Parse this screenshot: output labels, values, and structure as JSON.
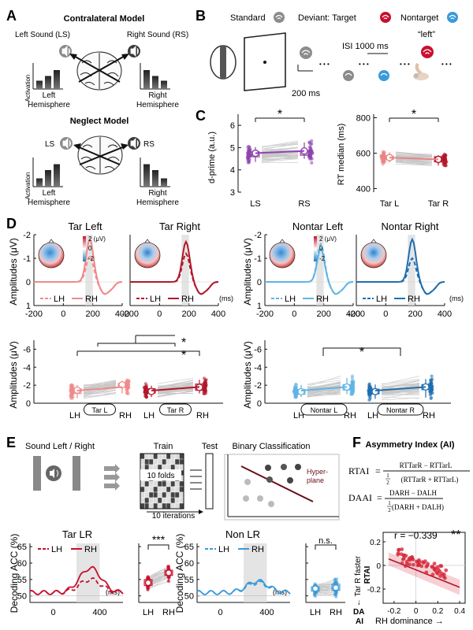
{
  "panels": {
    "A": {
      "letter": "A",
      "contra_title": "Contralateral Model",
      "left_sound": "Left Sound (LS)",
      "right_sound": "Right Sound (RS)",
      "activation": "Activation",
      "left_hemi": [
        "Left",
        "Hemisphere"
      ],
      "right_hemi": [
        "Right",
        "Hemisphere"
      ],
      "neglect_title": "Neglect Model",
      "ls": "LS",
      "rs": "RS",
      "bars_contra_left": [
        0.35,
        0.55,
        0.8
      ],
      "bars_contra_right": [
        0.8,
        0.55,
        0.35
      ],
      "bars_neglect_left": [
        0.35,
        0.7,
        0.95
      ],
      "bars_neglect_right": [
        0.95,
        0.7,
        0.35
      ]
    },
    "B": {
      "letter": "B",
      "standard": "Standard",
      "deviant": "Deviant: Target",
      "nontarget": "Nontarget",
      "left_quote": "“left”",
      "isi": "ISI 1000 ms",
      "dur": "200 ms",
      "dots": "• • •",
      "colors": {
        "standard": "#8c8c8c",
        "target": "#c8102e",
        "nontarget": "#3a9ad9"
      }
    },
    "C": {
      "letter": "C",
      "sig": "*",
      "dprime": {
        "ylabel": "d-prime (a.u.)",
        "yticks": [
          "3",
          "4",
          "5",
          "6"
        ],
        "ylim": [
          3,
          6.5
        ],
        "categories": [
          "LS",
          "RS"
        ],
        "medians": [
          4.75,
          4.85
        ],
        "color": "#8e44ad"
      },
      "rt": {
        "ylabel": "RT median (ms)",
        "yticks": [
          "400",
          "600",
          "800"
        ],
        "ylim": [
          380,
          820
        ],
        "categories": [
          "Tar L",
          "Tar R"
        ],
        "medians": [
          575,
          565
        ],
        "colors": [
          "#e88585",
          "#b2182b"
        ]
      }
    },
    "D": {
      "letter": "D",
      "titles": [
        "Tar Left",
        "Tar Right",
        "Nontar Left",
        "Nontar Right"
      ],
      "ylabel": "Amplitudes (μV)",
      "yticks_top": [
        "-2",
        "-1",
        "0",
        "1"
      ],
      "xticks": [
        "-200",
        "0",
        "200",
        "400"
      ],
      "xunit": "(ms)",
      "legend_lh": "LH",
      "legend_rh": "RH",
      "cb_max": "2 (μV)",
      "cb_mid": "0",
      "cb_min": "-2",
      "yticks_bottom": [
        "-6",
        "-4",
        "-2",
        "0"
      ],
      "bottom_cats": [
        "LH",
        "RH"
      ],
      "group_labels": [
        "Tar L",
        "Tar R",
        "Nontar L",
        "Nontar R"
      ],
      "sig": "*",
      "colors": {
        "tar_l": "#ef8a8a",
        "tar_r": "#b2182b",
        "non_l": "#5fb4e6",
        "non_r": "#1f6eb0"
      }
    },
    "E": {
      "letter": "E",
      "sound_lr": "Sound Left / Right",
      "train": "Train",
      "test": "Test",
      "folds": "10 folds",
      "iterations": "10 iterations",
      "binary": "Binary Classification",
      "hyperplane": [
        "Hyper-",
        "plane"
      ],
      "tar_title": "Tar LR",
      "non_title": "Non LR",
      "ylabel": "Decoding ACC (%)",
      "yticks": [
        "50",
        "55",
        "60",
        "65"
      ],
      "xticks": [
        "0",
        "400"
      ],
      "xunit": "(ms)",
      "legend_lh": "LH",
      "legend_rh": "RH",
      "cats": [
        "LH",
        "RH"
      ],
      "sig_tar": "***",
      "sig_non": "n.s."
    },
    "F": {
      "letter": "F",
      "title": "Asymmetry Index (AI)",
      "rtai": "RTAI",
      "daai": "DAAI",
      "rtai_num": "RTₜₐᵣR − RTₜₐᵣL",
      "rtai_num_plain": "RTTarR − RTTarL",
      "rtai_den": "(RTTarR + RTTarL)",
      "daai_num": "DARH − DALH",
      "daai_den": "(DARH + DALH)",
      "half": "1",
      "two": "2",
      "eq": "=",
      "r_text": "r = −0.339",
      "sig": "**",
      "yticks": [
        "-0.2",
        "0",
        "0.2"
      ],
      "xticks": [
        "-0.2",
        "0",
        "0.2",
        "0.4"
      ],
      "ylabel": "RTAI",
      "ylabel2": "← Tar R faster",
      "xlabel": "RH dominance →",
      "xlabel_prefix": [
        "DA",
        "AI"
      ],
      "color": "#d62839"
    }
  }
}
